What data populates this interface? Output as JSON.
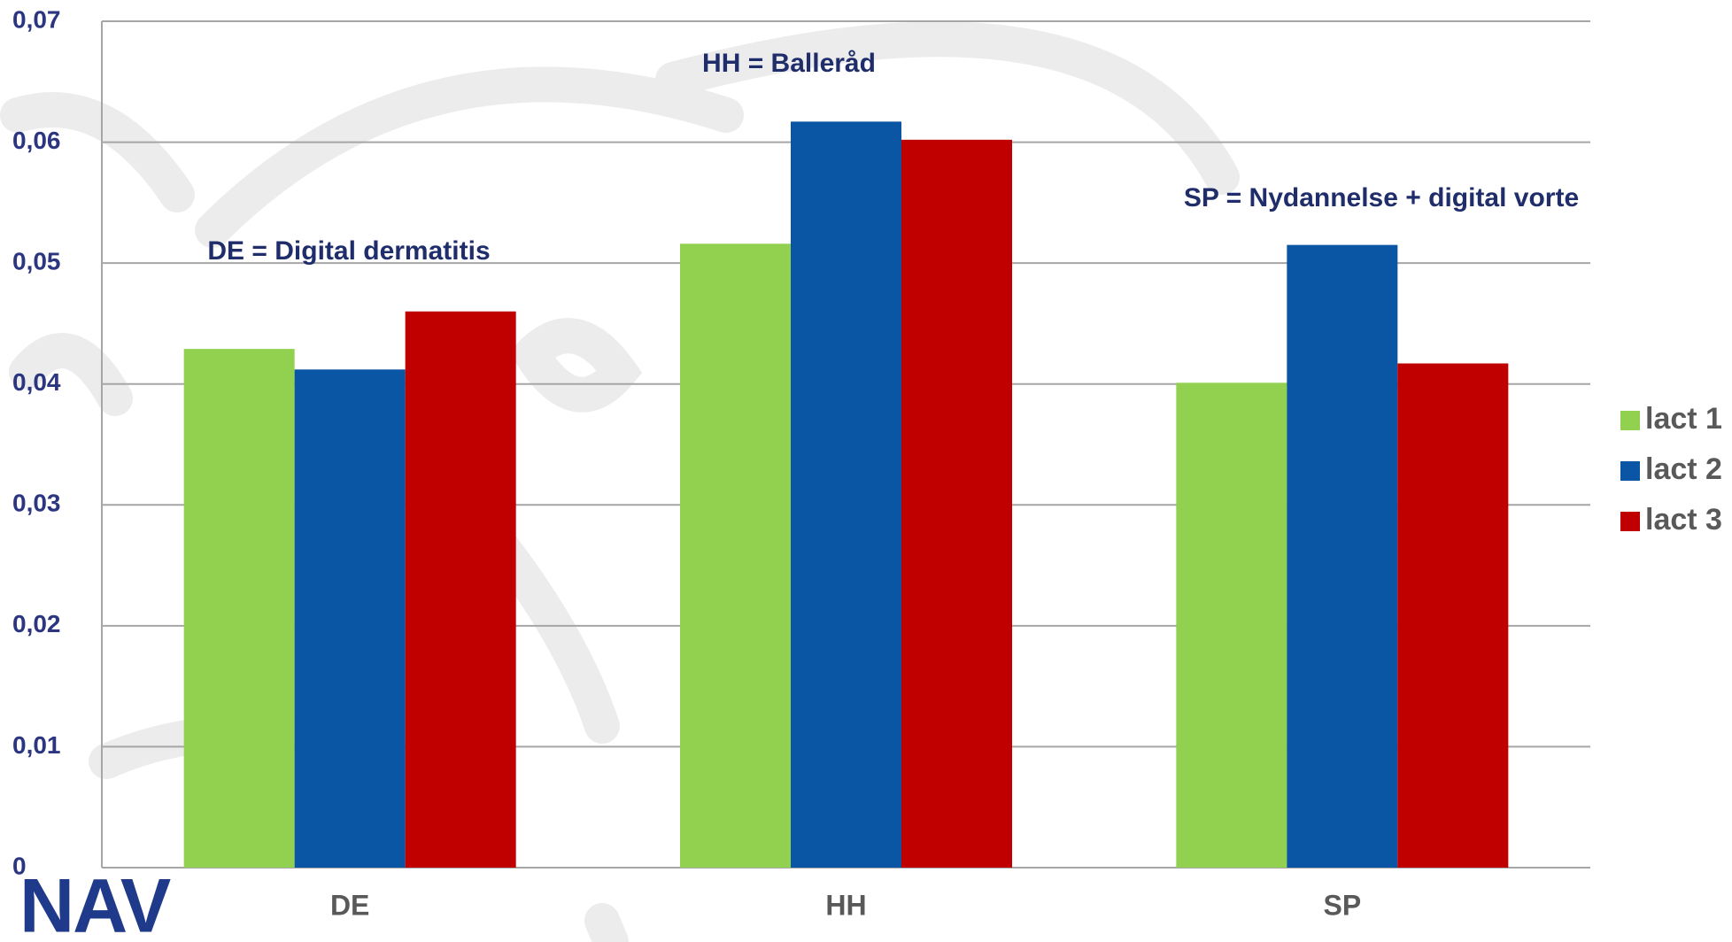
{
  "chart_data": {
    "type": "bar",
    "categories": [
      "DE",
      "HH",
      "SP"
    ],
    "series": [
      {
        "name": "lact 1",
        "color": "#92d050",
        "values": [
          0.0429,
          0.0516,
          0.0401
        ]
      },
      {
        "name": "lact 2",
        "color": "#0b56a4",
        "values": [
          0.0412,
          0.0617,
          0.0515
        ]
      },
      {
        "name": "lact 3",
        "color": "#c00000",
        "values": [
          0.046,
          0.0602,
          0.0417
        ]
      }
    ],
    "annotations": [
      "DE = Digital dermatitis",
      "HH = Balleråd",
      "SP = Nydannelse + digital vorte"
    ],
    "ylim": [
      0,
      0.07
    ],
    "yticks": [
      0,
      {
        "value": 0.01,
        "label": "0,01"
      },
      {
        "value": 0.02,
        "label": "0,02"
      },
      {
        "value": 0.03,
        "label": "0,03"
      },
      {
        "value": 0.04,
        "label": "0,04"
      },
      {
        "value": 0.05,
        "label": "0,05"
      },
      {
        "value": 0.06,
        "label": "0,06"
      },
      {
        "value": 0.07,
        "label": "0,07"
      }
    ],
    "grid": true,
    "legend": "right",
    "logo": "NAV"
  }
}
